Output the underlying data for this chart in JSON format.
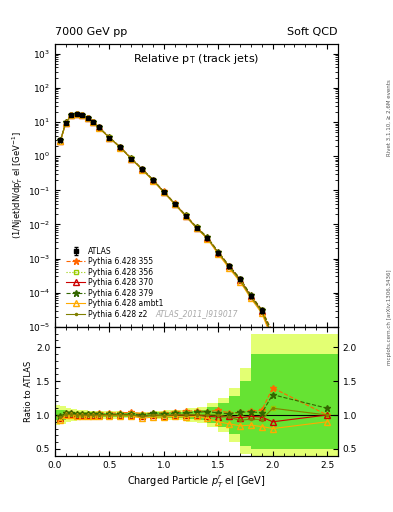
{
  "title_left": "7000 GeV pp",
  "title_right": "Soft QCD",
  "plot_title": "Relative p$_{\\rm T}$ (track jets)",
  "ylabel_main": "(1/Njet)dN/dp$^{r}_{T}$ el [GeV$^{-1}$]",
  "ylabel_ratio": "Ratio to ATLAS",
  "xlabel": "Charged Particle $p^{r}_{T}$ el [GeV]",
  "right_label_top": "Rivet 3.1.10, ≥ 2.6M events",
  "right_label_bottom": "mcplots.cern.ch [arXiv:1306.3436]",
  "watermark": "ATLAS_2011_I919017",
  "atlas_x": [
    0.05,
    0.1,
    0.15,
    0.2,
    0.25,
    0.3,
    0.35,
    0.4,
    0.5,
    0.6,
    0.7,
    0.8,
    0.9,
    1.0,
    1.1,
    1.2,
    1.3,
    1.4,
    1.5,
    1.6,
    1.7,
    1.8,
    1.9,
    2.0,
    2.5
  ],
  "atlas_y": [
    3.0,
    9.5,
    16.0,
    17.0,
    16.0,
    13.0,
    10.0,
    7.0,
    3.5,
    1.8,
    0.85,
    0.42,
    0.2,
    0.09,
    0.04,
    0.018,
    0.008,
    0.004,
    0.0015,
    0.0006,
    0.00025,
    8e-05,
    3e-05,
    5e-06,
    5e-06
  ],
  "atlas_yerr_lo": [
    0.3,
    0.5,
    0.8,
    0.8,
    0.7,
    0.6,
    0.5,
    0.3,
    0.2,
    0.1,
    0.05,
    0.02,
    0.01,
    0.005,
    0.003,
    0.001,
    0.0005,
    0.0003,
    0.00015,
    6e-05,
    3e-05,
    1e-05,
    5e-06,
    2e-06,
    3e-06
  ],
  "atlas_yerr_hi": [
    0.3,
    0.5,
    0.8,
    0.8,
    0.7,
    0.6,
    0.5,
    0.3,
    0.2,
    0.1,
    0.05,
    0.02,
    0.01,
    0.005,
    0.003,
    0.001,
    0.0005,
    0.0003,
    0.00015,
    6e-05,
    3e-05,
    1e-05,
    5e-06,
    2e-06,
    3e-06
  ],
  "series": [
    {
      "label": "Pythia 6.428 355",
      "color": "#ff6600",
      "linestyle": "--",
      "marker": "*",
      "y": [
        2.9,
        9.8,
        16.4,
        17.2,
        16.2,
        13.2,
        10.2,
        7.2,
        3.6,
        1.85,
        0.88,
        0.43,
        0.205,
        0.093,
        0.042,
        0.019,
        0.0085,
        0.0042,
        0.0016,
        0.00062,
        0.00026,
        8.5e-05,
        3.2e-05,
        7e-06,
        6e-06
      ],
      "ratio": [
        0.97,
        1.03,
        1.03,
        1.01,
        1.01,
        1.02,
        1.02,
        1.03,
        1.03,
        1.03,
        1.04,
        1.02,
        1.03,
        1.03,
        1.05,
        1.06,
        1.06,
        1.05,
        1.07,
        1.03,
        1.04,
        1.06,
        1.07,
        1.4,
        1.0
      ]
    },
    {
      "label": "Pythia 6.428 356",
      "color": "#99cc00",
      "linestyle": ":",
      "marker": "s",
      "y": [
        2.95,
        9.7,
        16.2,
        17.1,
        16.1,
        13.1,
        10.1,
        7.1,
        3.55,
        1.82,
        0.86,
        0.42,
        0.202,
        0.091,
        0.041,
        0.0185,
        0.0082,
        0.0041,
        0.0015,
        0.00061,
        0.000255,
        8.2e-05,
        3.1e-05,
        5.5e-06,
        5.5e-06
      ],
      "ratio": [
        0.98,
        1.02,
        1.01,
        1.01,
        1.01,
        1.01,
        1.01,
        1.01,
        1.01,
        1.01,
        1.01,
        1.0,
        1.01,
        1.01,
        1.03,
        1.03,
        1.03,
        1.03,
        1.0,
        1.02,
        1.02,
        1.03,
        1.03,
        1.1,
        1.0
      ]
    },
    {
      "label": "Pythia 6.428 370",
      "color": "#cc0000",
      "linestyle": "-",
      "marker": "^",
      "y": [
        2.85,
        9.6,
        16.1,
        17.0,
        16.0,
        13.0,
        10.0,
        7.0,
        3.5,
        1.8,
        0.85,
        0.41,
        0.2,
        0.089,
        0.04,
        0.018,
        0.008,
        0.0039,
        0.00145,
        0.00059,
        0.00024,
        7.8e-05,
        2.9e-05,
        4.5e-06,
        5e-06
      ],
      "ratio": [
        0.95,
        1.01,
        1.01,
        1.0,
        1.0,
        1.0,
        1.0,
        1.0,
        1.0,
        1.0,
        1.0,
        0.98,
        1.0,
        0.99,
        1.0,
        1.0,
        1.0,
        0.98,
        0.97,
        0.98,
        0.96,
        0.98,
        0.97,
        0.9,
        1.0
      ]
    },
    {
      "label": "Pythia 6.428 379",
      "color": "#336600",
      "linestyle": "--",
      "marker": "*",
      "y": [
        2.95,
        9.8,
        16.4,
        17.1,
        16.1,
        13.1,
        10.1,
        7.1,
        3.55,
        1.82,
        0.86,
        0.42,
        0.205,
        0.091,
        0.041,
        0.0185,
        0.0083,
        0.0042,
        0.00155,
        0.00061,
        0.00026,
        8.4e-05,
        3.1e-05,
        6.5e-06,
        5.5e-06
      ],
      "ratio": [
        0.98,
        1.03,
        1.03,
        1.01,
        1.01,
        1.01,
        1.01,
        1.01,
        1.01,
        1.01,
        1.01,
        1.0,
        1.03,
        1.01,
        1.03,
        1.03,
        1.04,
        1.05,
        1.03,
        1.02,
        1.04,
        1.05,
        1.03,
        1.3,
        1.1
      ]
    },
    {
      "label": "Pythia 6.428 ambt1",
      "color": "#ffaa00",
      "linestyle": "-",
      "marker": "^",
      "y": [
        2.75,
        9.5,
        16.0,
        16.8,
        15.8,
        12.8,
        9.8,
        6.9,
        3.45,
        1.78,
        0.84,
        0.4,
        0.193,
        0.087,
        0.039,
        0.0175,
        0.0078,
        0.0038,
        0.00135,
        0.00052,
        0.00021,
        6.8e-05,
        2.5e-05,
        4e-06,
        4.5e-06
      ],
      "ratio": [
        0.92,
        1.0,
        1.0,
        0.99,
        0.99,
        0.98,
        0.98,
        0.99,
        0.99,
        0.99,
        0.99,
        0.95,
        0.97,
        0.97,
        0.98,
        0.97,
        0.98,
        0.95,
        0.9,
        0.87,
        0.84,
        0.85,
        0.83,
        0.8,
        0.9
      ]
    },
    {
      "label": "Pythia 6.428 z2",
      "color": "#808000",
      "linestyle": "-",
      "marker": ".",
      "y": [
        2.9,
        9.6,
        16.1,
        17.0,
        16.0,
        13.0,
        10.0,
        7.0,
        3.5,
        1.8,
        0.85,
        0.41,
        0.2,
        0.089,
        0.04,
        0.018,
        0.008,
        0.004,
        0.0015,
        0.00058,
        0.00023,
        7.5e-05,
        2.8e-05,
        5.5e-06,
        5.2e-06
      ],
      "ratio": [
        0.97,
        1.01,
        1.01,
        1.0,
        1.0,
        1.0,
        1.0,
        1.0,
        1.0,
        1.0,
        1.0,
        0.98,
        1.0,
        0.99,
        1.0,
        1.0,
        1.0,
        1.0,
        1.0,
        0.97,
        0.92,
        0.94,
        0.93,
        1.1,
        1.0
      ]
    }
  ],
  "xlim": [
    0,
    2.6
  ],
  "ylim_main": [
    1e-05,
    2000
  ],
  "ylim_ratio": [
    0.4,
    2.3
  ],
  "ratio_yticks": [
    0.5,
    1.0,
    1.5,
    2.0
  ],
  "band_color_inner": "#00cc00",
  "band_color_outer": "#ccff00",
  "band_alpha": 0.55,
  "band_x": [
    0.0,
    0.05,
    0.1,
    0.15,
    0.2,
    0.25,
    0.3,
    0.35,
    0.4,
    0.5,
    0.6,
    0.7,
    0.8,
    0.9,
    1.0,
    1.1,
    1.2,
    1.3,
    1.4,
    1.5,
    1.6,
    1.7,
    1.8,
    1.9,
    2.0,
    2.5
  ],
  "band_x_right": [
    0.05,
    0.1,
    0.15,
    0.2,
    0.25,
    0.3,
    0.35,
    0.4,
    0.5,
    0.6,
    0.7,
    0.8,
    0.9,
    1.0,
    1.1,
    1.2,
    1.3,
    1.4,
    1.5,
    1.6,
    1.7,
    1.8,
    1.9,
    2.0,
    2.5,
    2.6
  ],
  "band_outer_top": [
    1.15,
    1.13,
    1.11,
    1.09,
    1.08,
    1.07,
    1.06,
    1.06,
    1.06,
    1.06,
    1.05,
    1.05,
    1.05,
    1.06,
    1.07,
    1.08,
    1.1,
    1.12,
    1.18,
    1.25,
    1.4,
    1.7,
    2.2,
    2.2,
    2.2,
    2.2
  ],
  "band_outer_bot": [
    0.85,
    0.87,
    0.89,
    0.91,
    0.92,
    0.93,
    0.94,
    0.94,
    0.94,
    0.94,
    0.95,
    0.95,
    0.95,
    0.94,
    0.93,
    0.92,
    0.9,
    0.88,
    0.82,
    0.75,
    0.6,
    0.42,
    0.4,
    0.4,
    0.4,
    0.4
  ],
  "band_inner_top": [
    1.08,
    1.07,
    1.06,
    1.05,
    1.04,
    1.04,
    1.03,
    1.03,
    1.03,
    1.03,
    1.03,
    1.03,
    1.03,
    1.04,
    1.04,
    1.05,
    1.06,
    1.08,
    1.12,
    1.18,
    1.28,
    1.5,
    1.9,
    1.9,
    1.9,
    1.9
  ],
  "band_inner_bot": [
    0.92,
    0.93,
    0.94,
    0.95,
    0.96,
    0.96,
    0.97,
    0.97,
    0.97,
    0.97,
    0.97,
    0.97,
    0.97,
    0.96,
    0.96,
    0.95,
    0.94,
    0.92,
    0.88,
    0.82,
    0.72,
    0.55,
    0.5,
    0.5,
    0.5,
    0.5
  ]
}
